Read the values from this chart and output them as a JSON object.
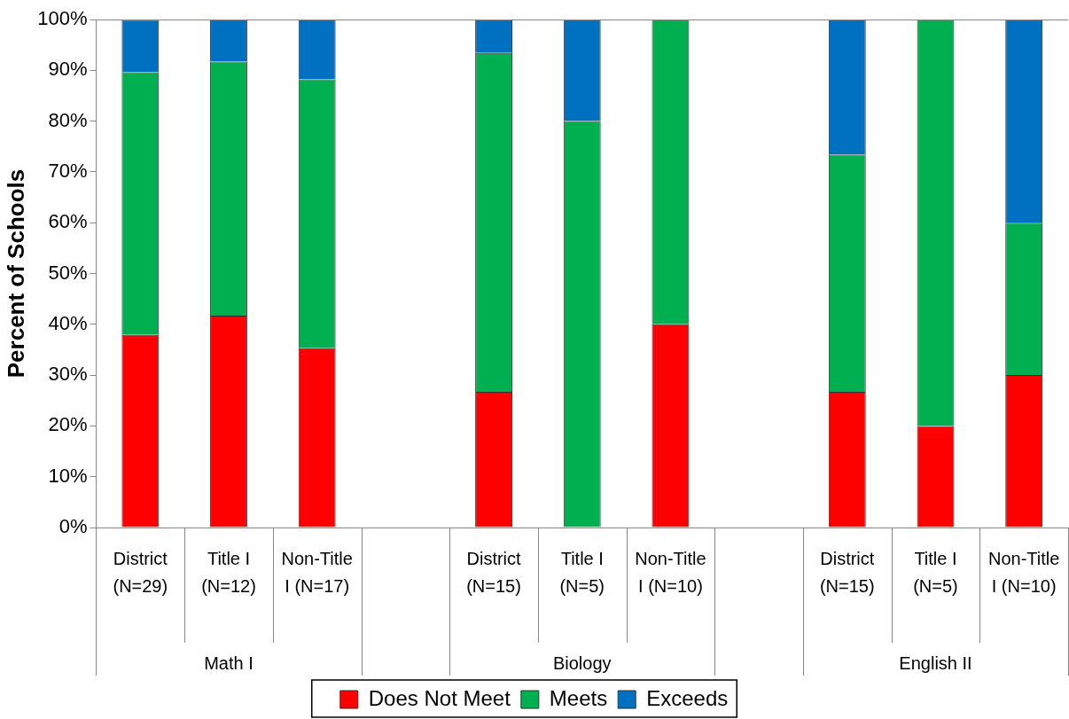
{
  "chart_data": {
    "type": "bar",
    "stacked": true,
    "ylabel": "Percent of Schools",
    "categories": [
      "District (N=29)",
      "Title I (N=12)",
      "Non-Title I (N=17)",
      null,
      "District (N=15)",
      "Title I (N=5)",
      "Non-Title I (N=10)",
      null,
      "District (N=15)",
      "Title I (N=5)",
      "Non-Title I (N=10)"
    ],
    "series": [
      {
        "name": "Does Not Meet",
        "color": "#ff0000",
        "values": [
          37.9,
          41.7,
          35.3,
          null,
          26.7,
          0,
          40,
          null,
          26.7,
          20,
          30
        ]
      },
      {
        "name": "Meets",
        "color": "#00b050",
        "values": [
          51.7,
          50,
          52.9,
          null,
          66.7,
          80,
          60,
          null,
          46.7,
          80,
          30
        ]
      },
      {
        "name": "Exceeds",
        "color": "#0070c0",
        "values": [
          10.3,
          8.3,
          11.8,
          null,
          6.7,
          20,
          0,
          null,
          26.7,
          0,
          40
        ]
      }
    ],
    "annotations": [
      "Math I",
      "Biology",
      "English II"
    ],
    "ylim": [
      0,
      100
    ],
    "yticks": [
      {
        "value": 0,
        "label": "0%"
      },
      {
        "value": 10,
        "label": "10%"
      },
      {
        "value": 20,
        "label": "20%"
      },
      {
        "value": 30,
        "label": "30%"
      },
      {
        "value": 40,
        "label": "40%"
      },
      {
        "value": 50,
        "label": "50%"
      },
      {
        "value": 60,
        "label": "60%"
      },
      {
        "value": 70,
        "label": "70%"
      },
      {
        "value": 80,
        "label": "80%"
      },
      {
        "value": 90,
        "label": "90%"
      },
      {
        "value": 100,
        "label": "100%"
      }
    ],
    "grid": false,
    "legend": "bottom"
  }
}
